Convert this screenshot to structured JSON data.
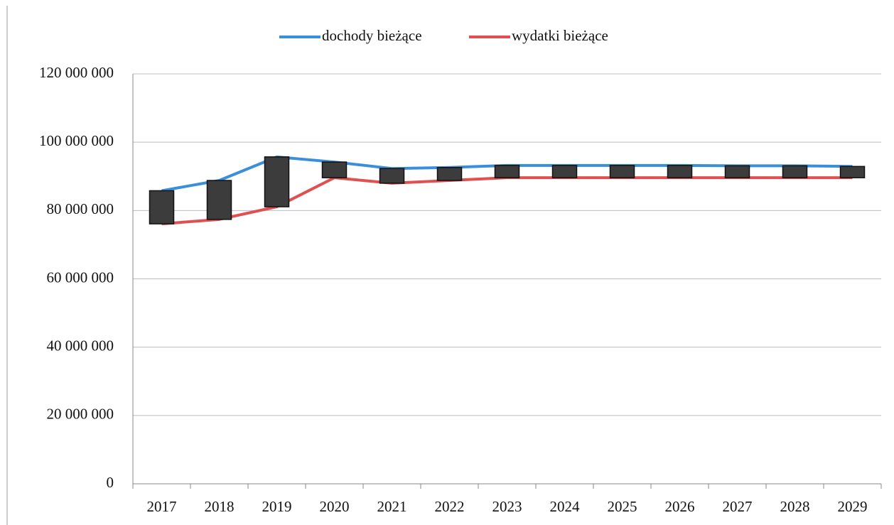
{
  "chart_data": {
    "type": "line",
    "categories": [
      "2017",
      "2018",
      "2019",
      "2020",
      "2021",
      "2022",
      "2023",
      "2024",
      "2025",
      "2026",
      "2027",
      "2028",
      "2029"
    ],
    "series": [
      {
        "name": "dochody bieżące",
        "color": "#3a8fdc",
        "values": [
          85800000,
          88800000,
          95700000,
          94200000,
          92300000,
          92600000,
          93200000,
          93200000,
          93200000,
          93200000,
          93100000,
          93100000,
          92900000
        ]
      },
      {
        "name": "wydatki bieżące",
        "color": "#e05050",
        "values": [
          76100000,
          77400000,
          81100000,
          89600000,
          88000000,
          88800000,
          89600000,
          89600000,
          89600000,
          89600000,
          89600000,
          89600000,
          89600000
        ]
      }
    ],
    "up_down_bars": true,
    "ylim": [
      0,
      120000000
    ],
    "yticks": [
      0,
      {
        "value": 20000000,
        "label": "20 000 000"
      },
      {
        "value": 40000000,
        "label": "40 000 000"
      },
      {
        "value": 60000000,
        "label": "60 000 000"
      },
      {
        "value": 80000000,
        "label": "80 000 000"
      },
      {
        "value": 100000000,
        "label": "100 000 000"
      },
      {
        "value": 120000000,
        "label": "120 000 000"
      }
    ],
    "grid": true,
    "legend": "top"
  }
}
